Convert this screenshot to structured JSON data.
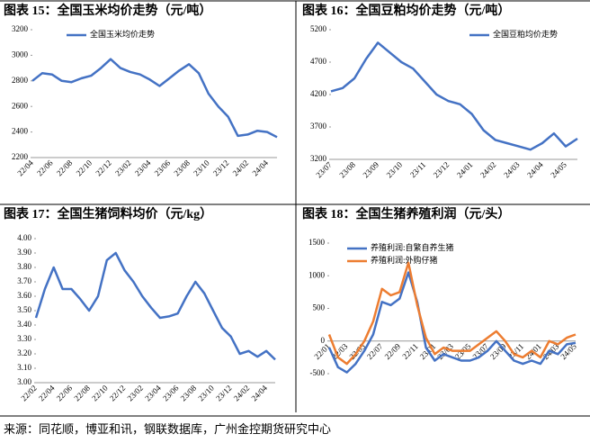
{
  "chart_data": [
    {
      "type": "line",
      "title": "图表 15：全国玉米均价走势（元/吨）",
      "legend": "upper left",
      "categories": [
        "22/04",
        null,
        "22/06",
        null,
        "22/08",
        null,
        "22/10",
        null,
        "22/12",
        null,
        "23/02",
        null,
        "23/04",
        null,
        "23/06",
        null,
        "23/08",
        null,
        "23/10",
        null,
        "23/12",
        null,
        "24/02",
        null,
        "24/04",
        null
      ],
      "series": [
        {
          "name": "全国玉米均价走势",
          "color": "#4472c4",
          "values": [
            2800,
            2860,
            2850,
            2800,
            2790,
            2820,
            2840,
            2900,
            2970,
            2900,
            2870,
            2850,
            2810,
            2760,
            2820,
            2880,
            2930,
            2860,
            2700,
            2600,
            2520,
            2370,
            2380,
            2410,
            2400,
            2360
          ]
        }
      ],
      "ylim": [
        2200,
        3200
      ],
      "yticks": [
        2200,
        2400,
        2600,
        2800,
        3000,
        3200
      ]
    },
    {
      "type": "line",
      "title": "图表 16：全国豆粕均价走势（元/吨）",
      "legend": "upper right",
      "categories": [
        "23/07",
        null,
        "23/08",
        null,
        "23/09",
        null,
        "23/10",
        null,
        "23/11",
        null,
        "23/12",
        null,
        "24/01",
        null,
        "24/02",
        null,
        "24/03",
        null,
        "24/04",
        null,
        "24/05",
        null
      ],
      "series": [
        {
          "name": "全国豆粕均价走势",
          "color": "#4472c4",
          "values": [
            4250,
            4300,
            4450,
            4750,
            5000,
            4850,
            4700,
            4600,
            4400,
            4200,
            4100,
            4050,
            3900,
            3650,
            3500,
            3450,
            3400,
            3350,
            3450,
            3600,
            3400,
            3520
          ]
        }
      ],
      "ylim": [
        3200,
        5200
      ],
      "yticks": [
        3200,
        3700,
        4200,
        4700,
        5200
      ]
    },
    {
      "type": "line",
      "title": "图表 17：全国生猪饲料均价（元/kg）",
      "color": "#4472c4",
      "categories": [
        "22/02",
        null,
        "22/04",
        null,
        "22/06",
        null,
        "22/08",
        null,
        "22/10",
        null,
        "22/12",
        null,
        "23/02",
        null,
        "23/04",
        null,
        "23/06",
        null,
        "23/08",
        null,
        "23/10",
        null,
        "23/12",
        null,
        "24/02",
        null,
        "24/04",
        null
      ],
      "values": [
        3.45,
        3.65,
        3.8,
        3.65,
        3.65,
        3.58,
        3.5,
        3.6,
        3.85,
        3.9,
        3.78,
        3.7,
        3.6,
        3.52,
        3.45,
        3.46,
        3.48,
        3.6,
        3.7,
        3.62,
        3.5,
        3.38,
        3.32,
        3.2,
        3.22,
        3.18,
        3.22,
        3.16
      ],
      "ylim": [
        3,
        4
      ],
      "yticks": [
        {
          "value": 3,
          "label": "3.00"
        },
        {
          "value": 3.1,
          "label": "3.10"
        },
        {
          "value": 3.2,
          "label": "3.20"
        },
        {
          "value": 3.3,
          "label": "3.30"
        },
        {
          "value": 3.4,
          "label": "3.40"
        },
        {
          "value": 3.5,
          "label": "3.50"
        },
        {
          "value": 3.6,
          "label": "3.60"
        },
        {
          "value": 3.7,
          "label": "3.70"
        },
        {
          "value": 3.8,
          "label": "3.80"
        },
        {
          "value": 3.9,
          "label": "3.90"
        },
        {
          "value": 4,
          "label": "4.00"
        }
      ]
    },
    {
      "type": "line",
      "title": "图表 18：全国生猪养殖利润（元/头）",
      "legend": "upper left",
      "categories": [
        "22/01",
        null,
        "22/03",
        null,
        "22/05",
        null,
        "22/07",
        null,
        "22/09",
        null,
        "22/11",
        null,
        "23/01",
        null,
        "23/03",
        null,
        "23/05",
        null,
        "23/07",
        null,
        "23/09",
        null,
        "23/11",
        null,
        "24/01",
        null,
        "24/03",
        null,
        "24/05"
      ],
      "series": [
        {
          "name": "养殖利润:自繁自养生猪",
          "color": "#4472c4",
          "values": [
            -100,
            -400,
            -480,
            -350,
            -150,
            100,
            600,
            550,
            650,
            1050,
            600,
            -100,
            -300,
            -200,
            -250,
            -300,
            -300,
            -250,
            -150,
            0,
            -150,
            -300,
            -350,
            -300,
            -350,
            -150,
            -200,
            -50,
            -30
          ]
        },
        {
          "name": "养殖利润:外购仔猪",
          "color": "#ed7d31",
          "values": [
            100,
            -250,
            -350,
            -200,
            0,
            300,
            800,
            700,
            750,
            1200,
            550,
            50,
            -200,
            -100,
            -150,
            -150,
            -150,
            -50,
            50,
            150,
            0,
            -200,
            -250,
            -150,
            -250,
            0,
            -50,
            50,
            100
          ]
        }
      ],
      "ylim": [
        -500,
        1500
      ],
      "yticks": [
        -500,
        0,
        500,
        1000,
        1500
      ]
    }
  ],
  "source": "来源：同花顺，博亚和讯，钢联数据库，广州金控期货研究中心"
}
